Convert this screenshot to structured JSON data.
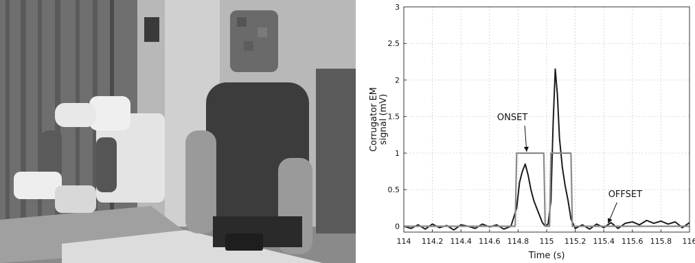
{
  "chart_data": {
    "type": "line",
    "title": "",
    "xlabel": "Time (s)",
    "ylabel": "Corrugator EM signal (mV)",
    "ylabel_lines": [
      "Corrugator EM",
      "signal (mV)"
    ],
    "xlim": [
      114,
      116
    ],
    "ylim": [
      -0.08,
      3
    ],
    "xticks": [
      114,
      114.2,
      114.4,
      114.6,
      114.8,
      115,
      115.2,
      115.4,
      115.6,
      115.8,
      116
    ],
    "xtick_labels": [
      "114",
      "114.2",
      "114.4",
      "114.6",
      "114.8",
      "115",
      "115.2",
      "115.4",
      "115.6",
      "115.8",
      "116"
    ],
    "yticks": [
      0,
      0.5,
      1,
      1.5,
      2,
      2.5,
      3
    ],
    "ytick_labels": [
      "0",
      "0.5",
      "1",
      "1.5",
      "2",
      "2.5",
      "3"
    ],
    "grid": true,
    "series": [
      {
        "color": "#1a1a1a",
        "x": [
          114.0,
          114.05,
          114.1,
          114.15,
          114.2,
          114.25,
          114.3,
          114.35,
          114.4,
          114.45,
          114.5,
          114.55,
          114.6,
          114.65,
          114.7,
          114.75,
          114.79,
          114.81,
          114.83,
          114.85,
          114.87,
          114.89,
          114.91,
          114.93,
          114.95,
          114.97,
          114.99,
          115.01,
          115.03,
          115.045,
          115.06,
          115.075,
          115.09,
          115.11,
          115.13,
          115.15,
          115.17,
          115.2,
          115.25,
          115.3,
          115.35,
          115.4,
          115.45,
          115.5,
          115.55,
          115.6,
          115.65,
          115.7,
          115.75,
          115.8,
          115.85,
          115.9,
          115.95,
          116.0
        ],
        "y": [
          0.0,
          -0.03,
          0.02,
          -0.04,
          0.03,
          -0.02,
          0.01,
          -0.05,
          0.02,
          0.0,
          -0.03,
          0.03,
          -0.01,
          0.02,
          -0.04,
          0.0,
          0.25,
          0.6,
          0.75,
          0.85,
          0.7,
          0.5,
          0.35,
          0.25,
          0.15,
          0.05,
          0.0,
          0.03,
          0.35,
          1.4,
          2.15,
          1.8,
          1.2,
          0.8,
          0.55,
          0.35,
          0.1,
          -0.03,
          0.02,
          -0.04,
          0.03,
          -0.02,
          0.05,
          -0.03,
          0.04,
          0.06,
          0.02,
          0.08,
          0.04,
          0.07,
          0.03,
          0.06,
          -0.02,
          0.05
        ]
      },
      {
        "color": "#8a8a8a",
        "x": [
          114.0,
          114.78,
          114.79,
          114.98,
          114.99,
          115.02,
          115.03,
          115.17,
          115.18,
          116.0
        ],
        "y": [
          0,
          0,
          1,
          1,
          0,
          0,
          1,
          1,
          0,
          0
        ]
      }
    ],
    "annotations": [
      {
        "label": "ONSET",
        "text_x": 114.76,
        "text_y": 1.45,
        "arrow_to": [
          114.86,
          1.02
        ]
      },
      {
        "label": "OFFSET",
        "text_x": 115.55,
        "text_y": 0.4,
        "arrow_to": [
          115.43,
          0.04
        ]
      }
    ]
  }
}
